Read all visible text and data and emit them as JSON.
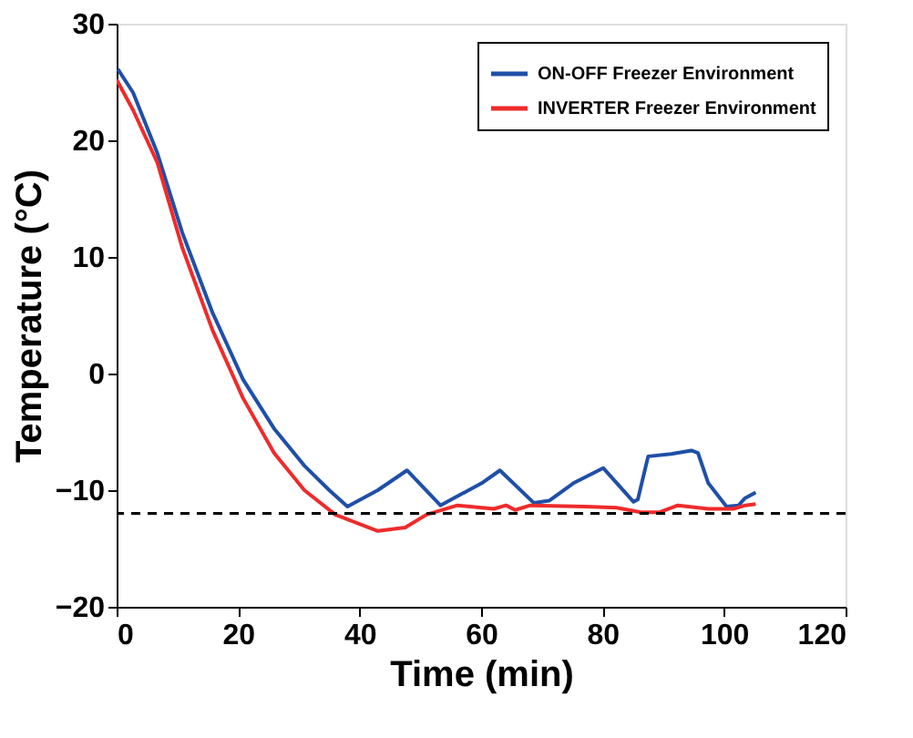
{
  "chart_data": {
    "type": "line",
    "xlabel": "Time (min)",
    "ylabel": "Temperature (°C)",
    "xlim": [
      0,
      120
    ],
    "ylim": [
      -20,
      30
    ],
    "xticks": [
      0,
      20,
      40,
      60,
      80,
      100,
      120
    ],
    "yticks": [
      -20,
      -10,
      0,
      10,
      20,
      30
    ],
    "grid": false,
    "legend": "top right",
    "line_style": "solid",
    "marker": "none",
    "series": [
      {
        "name": "ON-OFF Freezer Environment",
        "color": "#1f4fa8",
        "x": [
          0.2,
          2.7,
          6.7,
          10.8,
          15.8,
          20.8,
          25.9,
          30.9,
          35,
          38,
          43,
          47.8,
          53.3,
          60.1,
          63.1,
          68.7,
          71.2,
          75.2,
          80.1,
          85.1,
          85.8,
          87.5,
          91.3,
          94.6,
          95.7,
          97.4,
          100.4,
          102.4,
          103.4,
          105.2
        ],
        "values": [
          26.1,
          24.1,
          18.9,
          12.1,
          5.2,
          -0.5,
          -4.7,
          -7.9,
          -10,
          -11.4,
          -10,
          -8.3,
          -11.3,
          -9.4,
          -8.3,
          -11.1,
          -10.9,
          -9.4,
          -8.1,
          -11,
          -10.8,
          -7.1,
          -6.9,
          -6.6,
          -6.8,
          -9.4,
          -11.4,
          -11.3,
          -10.7,
          -10.2
        ]
      },
      {
        "name": "INVERTER Freezer Environment",
        "color": "#ee2b2b",
        "x": [
          0,
          2.7,
          6.7,
          10.8,
          15.8,
          20.8,
          25.9,
          30.9,
          36,
          43,
          47.5,
          51,
          56.1,
          62.1,
          64.1,
          65.6,
          68.1,
          77.2,
          82.3,
          86.3,
          89.3,
          92.4,
          97.4,
          101.5,
          103.5,
          105.2
        ],
        "values": [
          25.2,
          22.6,
          18.1,
          10.8,
          3.7,
          -2.1,
          -6.8,
          -10,
          -12.1,
          -13.5,
          -13.2,
          -12.1,
          -11.3,
          -11.6,
          -11.3,
          -11.7,
          -11.3,
          -11.4,
          -11.5,
          -11.9,
          -11.9,
          -11.3,
          -11.6,
          -11.6,
          -11.3,
          -11.2
        ]
      }
    ],
    "ref_lines": [
      {
        "axis": "y",
        "value": -12,
        "color": "#000000",
        "line_style": "dashed"
      }
    ]
  }
}
